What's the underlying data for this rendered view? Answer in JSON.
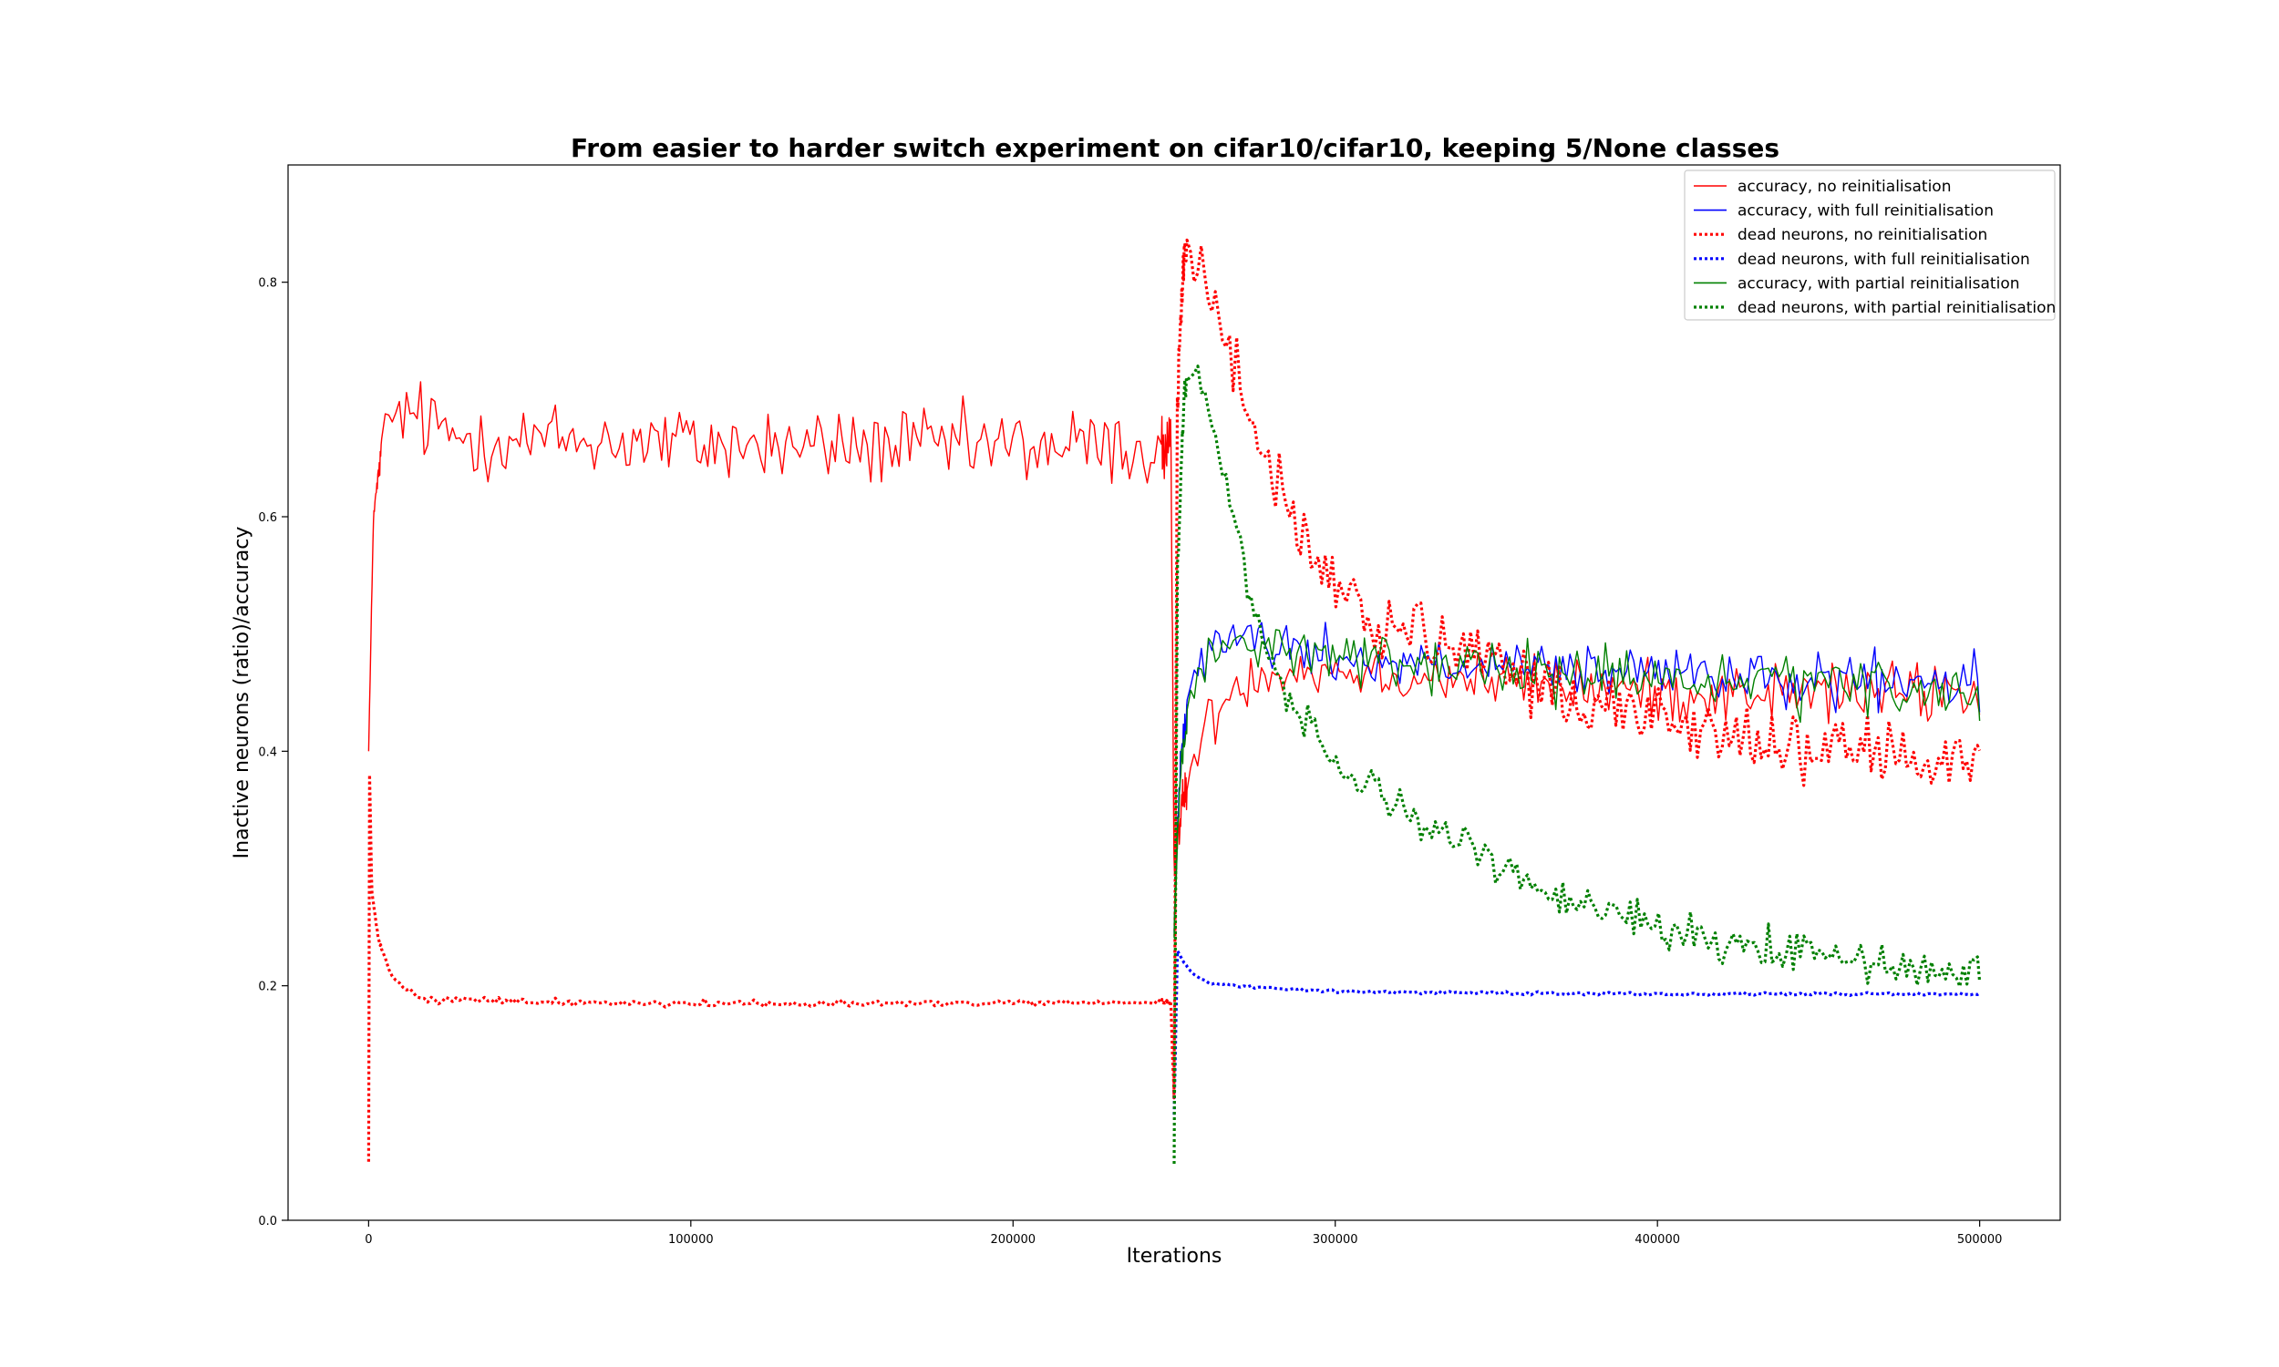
{
  "chart_data": {
    "type": "line",
    "title": "From easier to harder switch experiment on cifar10/cifar10, keeping 5/None classes",
    "xlabel": "Iterations",
    "ylabel": "Inactive neurons (ratio)/accuracy",
    "xlim": [
      -25000,
      525000
    ],
    "ylim": [
      0.0,
      0.9
    ],
    "xticks": [
      0,
      100000,
      200000,
      300000,
      400000,
      500000
    ],
    "yticks": [
      0.0,
      0.2,
      0.4,
      0.6,
      0.8
    ],
    "xtick_labels": [
      "0",
      "100000",
      "200000",
      "300000",
      "400000",
      "500000"
    ],
    "ytick_labels": [
      "0.0",
      "0.2",
      "0.4",
      "0.6",
      "0.8"
    ],
    "grid": false,
    "legend_position": "top-right",
    "series": [
      {
        "name": "accuracy, no reinitialisation",
        "color": "#ff0000",
        "style": "solid",
        "points": [
          [
            0,
            0.4
          ],
          [
            1500,
            0.6
          ],
          [
            5000,
            0.68
          ],
          [
            10000,
            0.69
          ],
          [
            25000,
            0.67
          ],
          [
            50000,
            0.665
          ],
          [
            75000,
            0.665
          ],
          [
            100000,
            0.662
          ],
          [
            125000,
            0.66
          ],
          [
            150000,
            0.66
          ],
          [
            175000,
            0.66
          ],
          [
            200000,
            0.66
          ],
          [
            225000,
            0.66
          ],
          [
            249000,
            0.655
          ],
          [
            250000,
            0.3
          ],
          [
            251000,
            0.33
          ],
          [
            253000,
            0.36
          ],
          [
            256000,
            0.39
          ],
          [
            260000,
            0.42
          ],
          [
            265000,
            0.44
          ],
          [
            270000,
            0.46
          ],
          [
            280000,
            0.47
          ],
          [
            300000,
            0.47
          ],
          [
            350000,
            0.46
          ],
          [
            400000,
            0.45
          ],
          [
            450000,
            0.45
          ],
          [
            500000,
            0.45
          ]
        ],
        "noise": [
          [
            0,
            0.0
          ],
          [
            10000,
            0.05
          ],
          [
            249000,
            0.05
          ],
          [
            250000,
            0.03
          ],
          [
            260000,
            0.035
          ],
          [
            500000,
            0.04
          ]
        ]
      },
      {
        "name": "accuracy, with full reinitialisation",
        "color": "#0000ff",
        "style": "solid",
        "points": [
          [
            250000,
            0.25
          ],
          [
            252000,
            0.4
          ],
          [
            255000,
            0.46
          ],
          [
            260000,
            0.49
          ],
          [
            270000,
            0.5
          ],
          [
            280000,
            0.49
          ],
          [
            300000,
            0.48
          ],
          [
            350000,
            0.47
          ],
          [
            400000,
            0.465
          ],
          [
            450000,
            0.46
          ],
          [
            500000,
            0.455
          ]
        ],
        "noise": [
          [
            250000,
            0.02
          ],
          [
            260000,
            0.035
          ],
          [
            500000,
            0.035
          ]
        ]
      },
      {
        "name": "dead neurons, no reinitialisation",
        "color": "#ff0000",
        "style": "dotted",
        "points": [
          [
            0,
            0.05
          ],
          [
            300,
            0.38
          ],
          [
            1000,
            0.28
          ],
          [
            3000,
            0.24
          ],
          [
            6000,
            0.215
          ],
          [
            10000,
            0.2
          ],
          [
            15000,
            0.19
          ],
          [
            20000,
            0.188
          ],
          [
            40000,
            0.187
          ],
          [
            60000,
            0.186
          ],
          [
            100000,
            0.185
          ],
          [
            150000,
            0.185
          ],
          [
            200000,
            0.185
          ],
          [
            249000,
            0.186
          ],
          [
            250000,
            0.1
          ],
          [
            251000,
            0.7
          ],
          [
            253000,
            0.82
          ],
          [
            257000,
            0.82
          ],
          [
            262000,
            0.78
          ],
          [
            270000,
            0.72
          ],
          [
            280000,
            0.64
          ],
          [
            290000,
            0.58
          ],
          [
            300000,
            0.54
          ],
          [
            320000,
            0.5
          ],
          [
            350000,
            0.47
          ],
          [
            380000,
            0.44
          ],
          [
            400000,
            0.43
          ],
          [
            430000,
            0.41
          ],
          [
            460000,
            0.4
          ],
          [
            480000,
            0.39
          ],
          [
            500000,
            0.39
          ]
        ],
        "noise": [
          [
            0,
            0.0
          ],
          [
            12000,
            0.006
          ],
          [
            249000,
            0.003
          ],
          [
            250000,
            0.02
          ],
          [
            260000,
            0.04
          ],
          [
            280000,
            0.055
          ],
          [
            300000,
            0.05
          ],
          [
            400000,
            0.045
          ],
          [
            500000,
            0.04
          ]
        ]
      },
      {
        "name": "dead neurons, with full reinitialisation",
        "color": "#0000ff",
        "style": "dotted",
        "points": [
          [
            250000,
            0.09
          ],
          [
            251000,
            0.23
          ],
          [
            253000,
            0.22
          ],
          [
            256000,
            0.21
          ],
          [
            260000,
            0.203
          ],
          [
            270000,
            0.2
          ],
          [
            280000,
            0.198
          ],
          [
            300000,
            0.195
          ],
          [
            350000,
            0.194
          ],
          [
            400000,
            0.193
          ],
          [
            450000,
            0.193
          ],
          [
            500000,
            0.193
          ]
        ],
        "noise": [
          [
            250000,
            0.0
          ],
          [
            260000,
            0.002
          ],
          [
            500000,
            0.002
          ]
        ]
      },
      {
        "name": "accuracy, with partial reinitialisation",
        "color": "#008000",
        "style": "solid",
        "points": [
          [
            250000,
            0.25
          ],
          [
            252000,
            0.38
          ],
          [
            255000,
            0.44
          ],
          [
            260000,
            0.48
          ],
          [
            265000,
            0.49
          ],
          [
            270000,
            0.49
          ],
          [
            280000,
            0.49
          ],
          [
            300000,
            0.48
          ],
          [
            350000,
            0.47
          ],
          [
            400000,
            0.46
          ],
          [
            450000,
            0.455
          ],
          [
            500000,
            0.45
          ]
        ],
        "noise": [
          [
            250000,
            0.02
          ],
          [
            260000,
            0.035
          ],
          [
            500000,
            0.035
          ]
        ]
      },
      {
        "name": "dead neurons, with partial reinitialisation",
        "color": "#008000",
        "style": "dotted",
        "points": [
          [
            250000,
            0.05
          ],
          [
            251000,
            0.55
          ],
          [
            253000,
            0.7
          ],
          [
            256000,
            0.73
          ],
          [
            260000,
            0.71
          ],
          [
            265000,
            0.64
          ],
          [
            270000,
            0.58
          ],
          [
            275000,
            0.52
          ],
          [
            280000,
            0.47
          ],
          [
            290000,
            0.43
          ],
          [
            300000,
            0.39
          ],
          [
            320000,
            0.35
          ],
          [
            340000,
            0.32
          ],
          [
            360000,
            0.29
          ],
          [
            380000,
            0.27
          ],
          [
            400000,
            0.25
          ],
          [
            420000,
            0.24
          ],
          [
            440000,
            0.23
          ],
          [
            460000,
            0.22
          ],
          [
            480000,
            0.215
          ],
          [
            500000,
            0.21
          ]
        ],
        "noise": [
          [
            250000,
            0.02
          ],
          [
            260000,
            0.03
          ],
          [
            280000,
            0.025
          ],
          [
            320000,
            0.025
          ],
          [
            400000,
            0.025
          ],
          [
            500000,
            0.025
          ]
        ]
      }
    ]
  }
}
